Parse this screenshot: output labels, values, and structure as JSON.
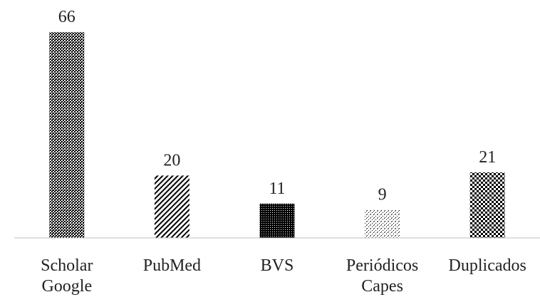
{
  "chart_data": {
    "type": "bar",
    "categories": [
      [
        "Scholar",
        "Google"
      ],
      [
        "PubMed"
      ],
      [
        "BVS"
      ],
      [
        "Periódicos",
        "Capes"
      ],
      [
        "Duplicados"
      ]
    ],
    "values": [
      66,
      20,
      11,
      9,
      21
    ],
    "data_labels": [
      "66",
      "20",
      "11",
      "9",
      "21"
    ],
    "patterns": [
      "checker-fine",
      "diagonal-stripes",
      "dense-dots",
      "sparse-dots",
      "checker-coarse"
    ],
    "title": "",
    "xlabel": "",
    "ylabel": "",
    "ylim": [
      0,
      66
    ],
    "grid": false,
    "legend": "none",
    "colors": {
      "bar_ink": "#000000",
      "axis": "#bfbfbf",
      "text": "#222222",
      "background": "#ffffff"
    }
  }
}
